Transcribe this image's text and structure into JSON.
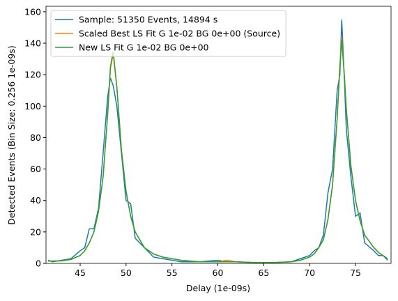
{
  "chart_data": {
    "type": "line",
    "xlabel": "Delay (1e-09s)",
    "ylabel": "Detected Events (Bin Size: 0.256 1e-09s)",
    "x": [
      41.5,
      42,
      43,
      44,
      45,
      45.5,
      46,
      46.5,
      47,
      47.5,
      48,
      48.3,
      48.6,
      49,
      49.5,
      50,
      50.5,
      51,
      52,
      53,
      54,
      55,
      56,
      58,
      60,
      61,
      62,
      64,
      66,
      68,
      69,
      70,
      70.5,
      71,
      71.5,
      72,
      72.5,
      73,
      73.3,
      73.5,
      73.8,
      74,
      74.5,
      75,
      75.5,
      76,
      77,
      77.5,
      78,
      78.5
    ],
    "series": [
      {
        "name": "Sample: 51350 Events, 14894 s",
        "color": "#1f77b4",
        "values": [
          2,
          1,
          2,
          3,
          8,
          10,
          22,
          22,
          35,
          70,
          106,
          118,
          113,
          100,
          70,
          40,
          38,
          16,
          10,
          4,
          3,
          2,
          1,
          1,
          2,
          1,
          1,
          0.5,
          0.5,
          1,
          3,
          5,
          8,
          10,
          18,
          45,
          60,
          110,
          120,
          155,
          115,
          85,
          55,
          30,
          32,
          13,
          8,
          5,
          5,
          2
        ]
      },
      {
        "name": "Scaled Best LS Fit G 1e-02 BG 0e+00 (Source)",
        "color": "#ff7f0e",
        "values": [
          1.5,
          1.5,
          1.6,
          2.5,
          5,
          8,
          13,
          20,
          33,
          55,
          95,
          124,
          133,
          112,
          72,
          46,
          30,
          20,
          10,
          6,
          4,
          3,
          2,
          1,
          1,
          2,
          1,
          0.5,
          0.5,
          1,
          2,
          4,
          6,
          10,
          15,
          28,
          50,
          92,
          126,
          144,
          118,
          98,
          62,
          40,
          27,
          18,
          10,
          7,
          5,
          3
        ]
      },
      {
        "name": "New LS Fit G 1e-02 BG 0e+00",
        "color": "#2ca02c",
        "values": [
          1.5,
          1.5,
          1.6,
          2.5,
          5,
          8,
          13,
          20,
          33,
          55,
          95,
          125,
          135,
          112,
          72,
          46,
          30,
          20,
          10,
          6,
          4,
          3,
          2,
          1,
          1,
          1,
          1,
          0.5,
          0.5,
          1,
          2,
          4,
          6,
          10,
          15,
          28,
          50,
          92,
          125,
          142,
          118,
          98,
          62,
          40,
          27,
          18,
          10,
          7,
          5,
          3
        ]
      }
    ],
    "xlim": [
      41.28,
      78.87
    ],
    "ylim": [
      0,
      163.5
    ],
    "xticks": [
      45,
      50,
      55,
      60,
      65,
      70,
      75
    ],
    "yticks": [
      0,
      20,
      40,
      60,
      80,
      100,
      120,
      140,
      160
    ],
    "legend": "upper left"
  }
}
